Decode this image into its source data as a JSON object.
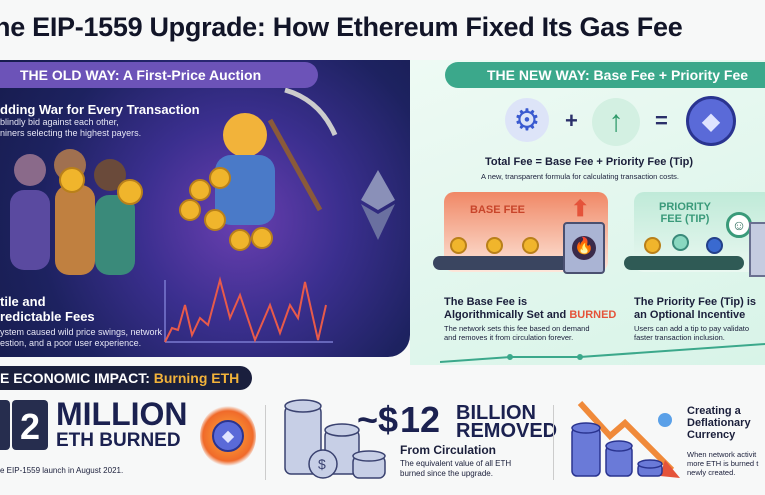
{
  "title": "he EIP-1559 Upgrade: How Ethereum Fixed Its Gas Fee",
  "old_way": {
    "header": "THE OLD WAY: A First-Price Auction",
    "bidding_title": "dding War for Every Transaction",
    "bidding_desc_1": "blindly bid against each other,",
    "bidding_desc_2": "niners selecting the highest payers.",
    "volatile_title_1": "tile and",
    "volatile_title_2": "redictable Fees",
    "volatile_desc_1": "ystem caused wild price swings, network",
    "volatile_desc_2": "estion, and a poor user experience.",
    "chart_color": "#e85a4a"
  },
  "new_way": {
    "header": "THE NEW WAY: Base Fee + Priority Fee",
    "plus": "+",
    "equals": "=",
    "formula": "Total Fee = Base Fee + Priority Fee (Tip)",
    "formula_desc": "A new, transparent formula for calculating transaction costs.",
    "base_label": "BASE FEE",
    "base_title_1": "The Base Fee is",
    "base_title_2": "Algorithmically Set and ",
    "base_title_burned": "BURNED",
    "base_desc_1": "The network sets this fee based on demand",
    "base_desc_2": "and removes it from circulation forever.",
    "priority_label": "PRIORITY FEE (TIP)",
    "priority_title_1": "The Priority Fee (Tip) is",
    "priority_title_2": "an Optional Incentive",
    "priority_desc_1": "Users can add a tip to pay validato",
    "priority_desc_2": "faster transaction inclusion."
  },
  "impact": {
    "header": "E ECONOMIC IMPACT: ",
    "header_accent": "Burning ETH",
    "digit": "2",
    "million": "MILLION",
    "eth_burned": "ETH BURNED",
    "since": "e EIP-1559 launch in August 2021.",
    "usd_prefix": "~$",
    "usd_value": "12",
    "billion": "BILLION",
    "removed": "REMOVED",
    "from_circ": "From Circulation",
    "equiv_1": "The equivalent value of all ETH",
    "equiv_2": "burned since the upgrade.",
    "defl_1": "Creating a",
    "defl_2": "Deflationary",
    "defl_3": "Currency",
    "defl_desc_1": "When network activit",
    "defl_desc_2": "more ETH is burned t",
    "defl_desc_3": "newly created."
  },
  "colors": {
    "old_panel": "#1d2260",
    "new_panel": "#d8f4e8",
    "accent_green": "#3ba88b",
    "accent_orange": "#f2b33a",
    "burn_red": "#e5533a"
  }
}
